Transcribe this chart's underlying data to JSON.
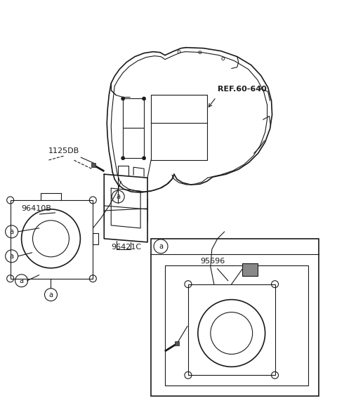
{
  "bg_color": "#ffffff",
  "line_color": "#1a1a1a",
  "labels": {
    "REF6060": "REF.60-640",
    "part1125DB": "1125DB",
    "part96410B": "96410B",
    "part96421C": "96421C",
    "part95696": "95696"
  },
  "figsize": [
    4.8,
    5.91
  ],
  "dpi": 100
}
